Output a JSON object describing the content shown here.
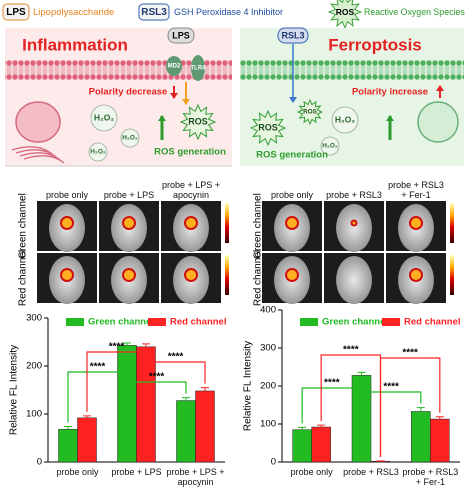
{
  "legend": [
    {
      "badge": "LPS",
      "text": "Lipopolysaccharide"
    },
    {
      "badge": "RSL3",
      "text": "GSH Peroxidase 4 Inhibitor"
    },
    {
      "badge": "ROS",
      "text": "Reactive Oxygen Species"
    }
  ],
  "schemes": [
    {
      "title": "Inflammation",
      "agent": "LPS",
      "receptors": [
        "MD2",
        "TLR4"
      ],
      "polarity": "Polarity decrease",
      "species": [
        "H₂O₂",
        "H₂O₂",
        "H₂O₂",
        "ROS"
      ],
      "generation": "ROS generation"
    },
    {
      "title": "Ferroptosis",
      "agent": "RSL3",
      "polarity": "Polarity increase",
      "species": [
        "ROS",
        "H₂O₂",
        "H₂O₂",
        "ROS"
      ],
      "generation": "ROS generation"
    }
  ],
  "imaging": [
    {
      "columns": [
        "probe only",
        "probe + LPS",
        "probe + LPS + apocynin"
      ],
      "rows": [
        "Green channel",
        "Red channel"
      ]
    },
    {
      "columns": [
        "probe only",
        "probe + RSL3",
        "probe + RSL3 + Fer-1"
      ],
      "rows": [
        "Green channel",
        "Red channel"
      ]
    }
  ],
  "chart_data": [
    {
      "type": "bar",
      "ylabel": "Relative FL Intensity",
      "categories": [
        "probe only",
        "probe + LPS",
        "probe + LPS + apocynin"
      ],
      "ylim": [
        0,
        300
      ],
      "yticks": [
        0,
        100,
        200,
        300
      ],
      "series": [
        {
          "name": "Green channel",
          "color": "#22bb22",
          "values": [
            68,
            243,
            128
          ],
          "errors": [
            6,
            5,
            6
          ]
        },
        {
          "name": "Red channel",
          "color": "#ff2222",
          "values": [
            92,
            240,
            148
          ],
          "errors": [
            4,
            6,
            7
          ]
        }
      ],
      "significance": [
        "****",
        "****",
        "****",
        "****"
      ]
    },
    {
      "type": "bar",
      "ylabel": "Relative FL Intensity",
      "categories": [
        "probe only",
        "probe + RSL3",
        "probe + RSL3 + Fer-1"
      ],
      "ylim": [
        0,
        400
      ],
      "yticks": [
        0,
        100,
        200,
        300,
        400
      ],
      "series": [
        {
          "name": "Green channel",
          "color": "#22bb22",
          "values": [
            85,
            228,
            133
          ],
          "errors": [
            6,
            8,
            10
          ]
        },
        {
          "name": "Red channel",
          "color": "#ff2222",
          "values": [
            92,
            2,
            113
          ],
          "errors": [
            5,
            1,
            6
          ]
        }
      ],
      "significance": [
        "****",
        "****",
        "****",
        "****"
      ]
    }
  ]
}
